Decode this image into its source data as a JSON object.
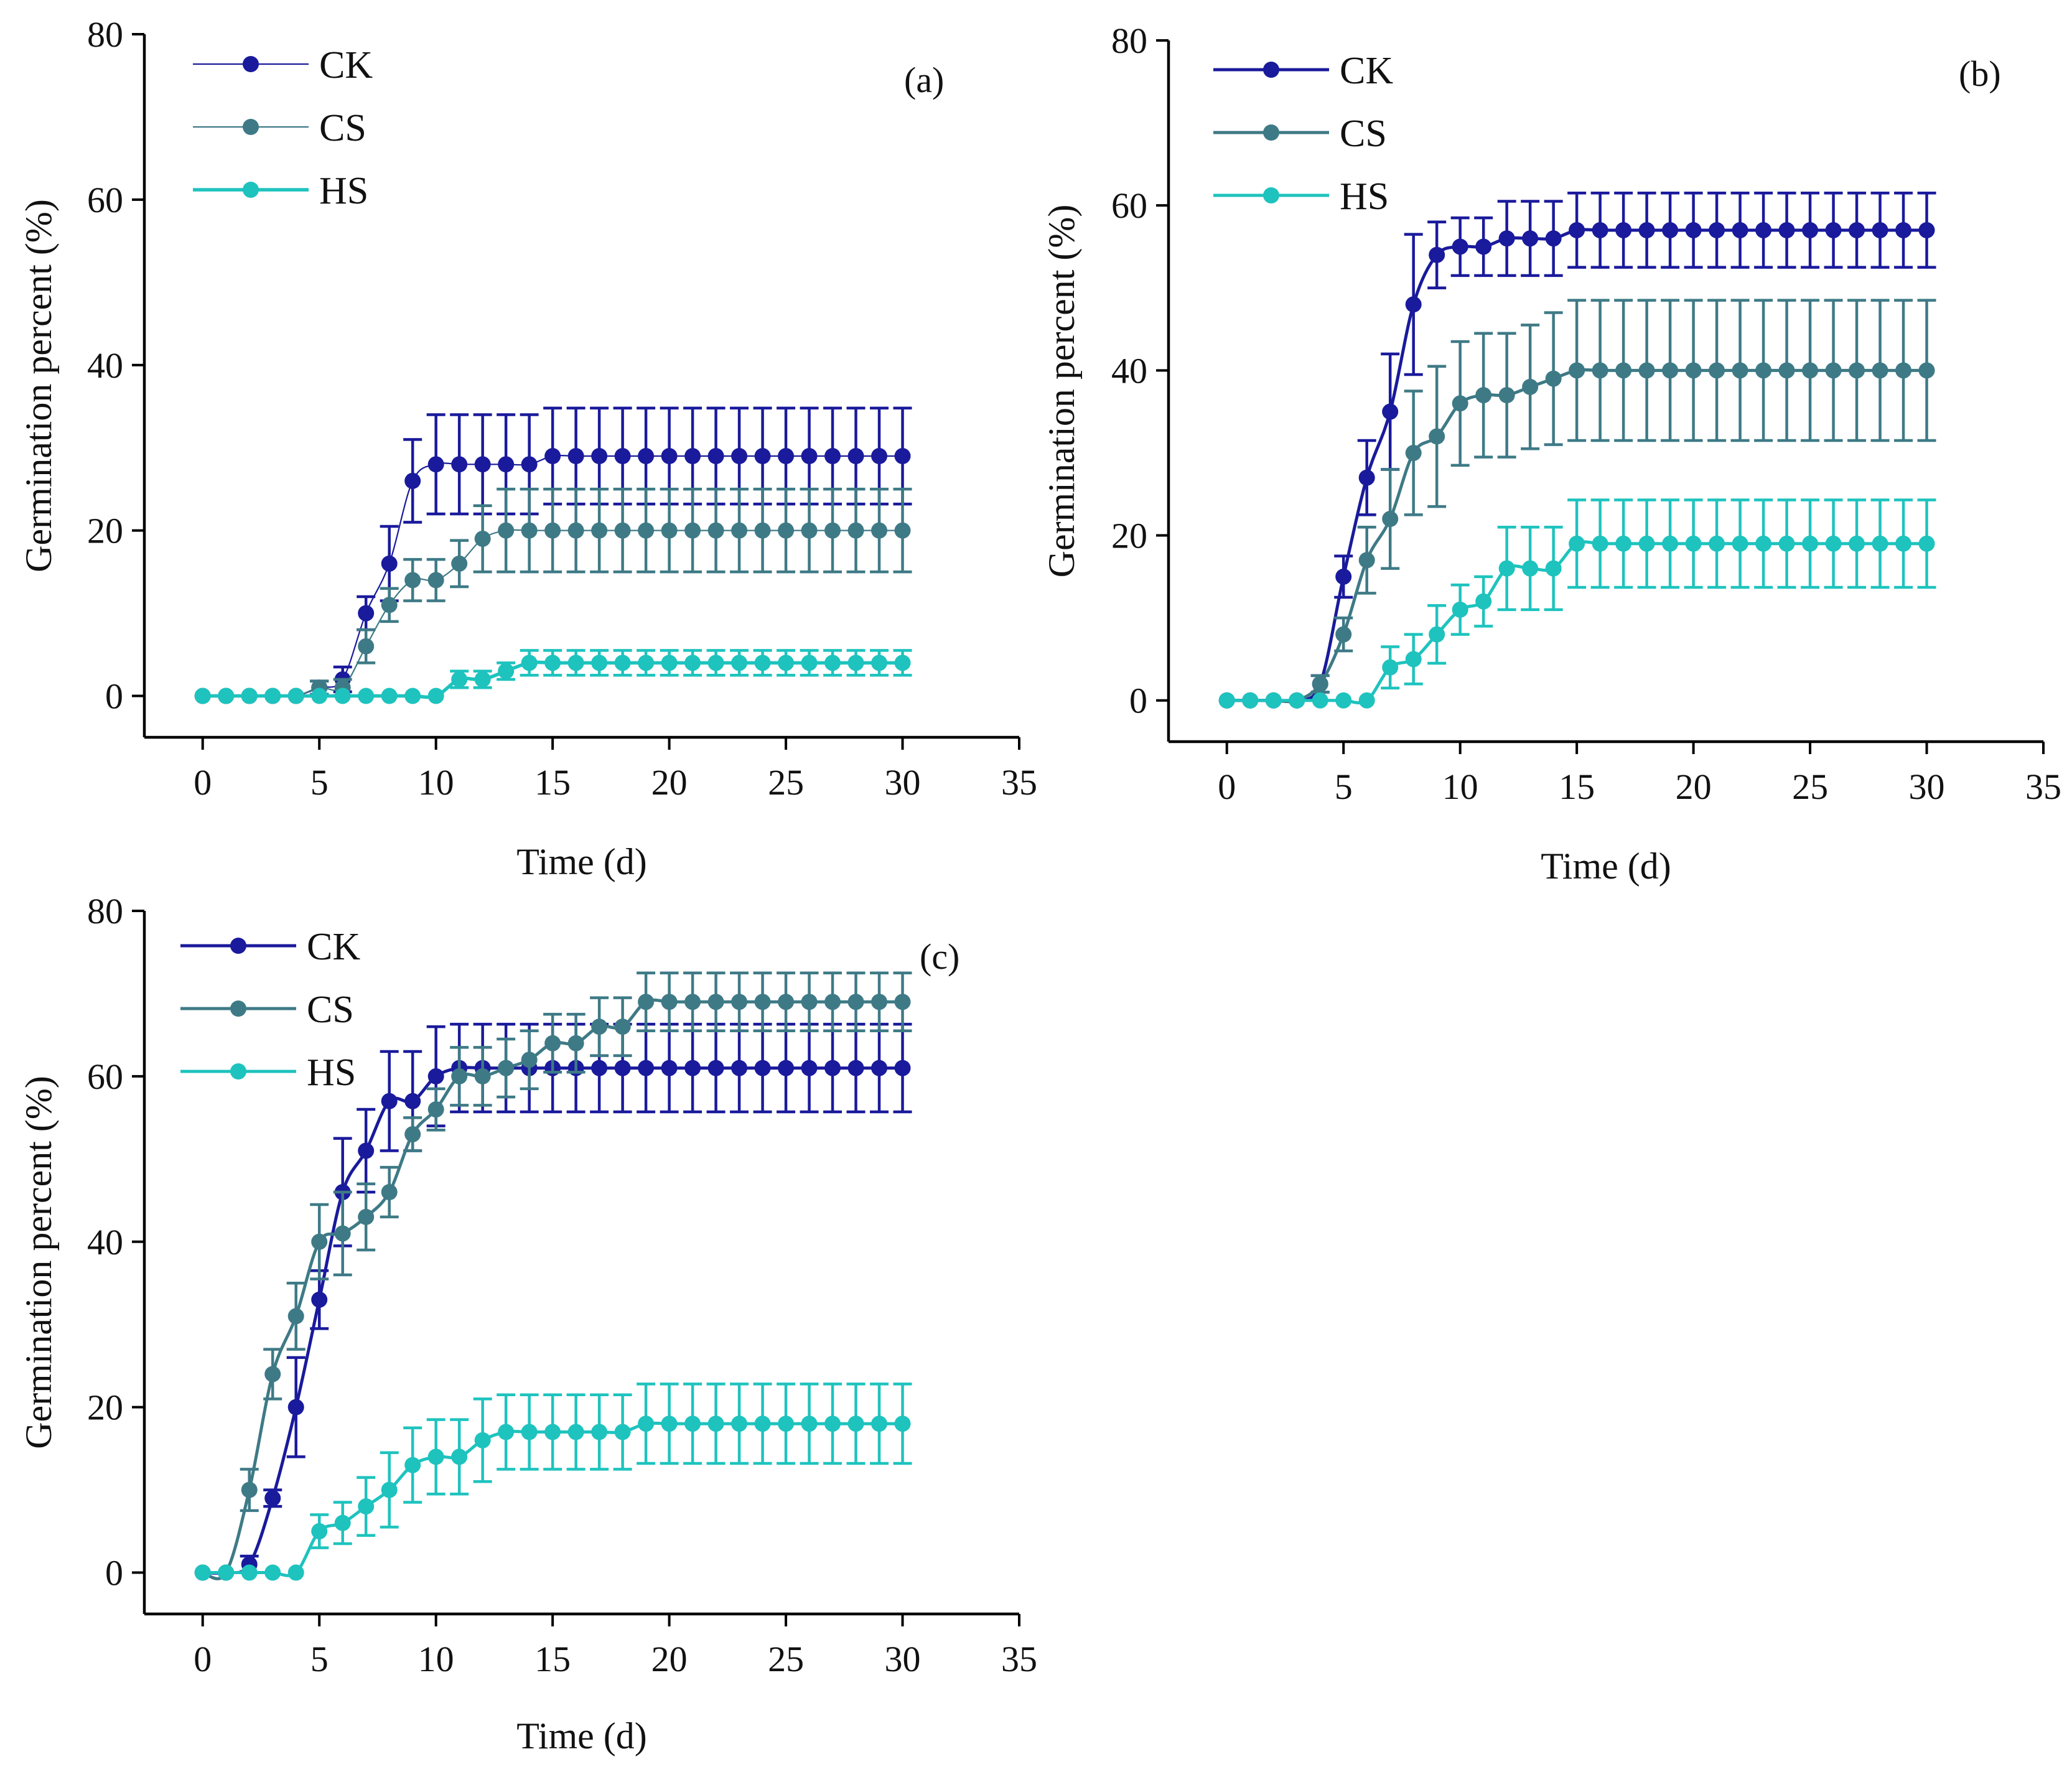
{
  "figure": {
    "title": ""
  },
  "chart_data": [
    {
      "type": "line",
      "panel_label": "(a)",
      "xlabel": "Time (d)",
      "ylabel": "Germination percent (%)",
      "xlim": [
        -2.5,
        35
      ],
      "ylim": [
        -5,
        80
      ],
      "xticks": [
        0,
        5,
        10,
        15,
        20,
        25,
        30,
        35
      ],
      "yticks": [
        0,
        20,
        40,
        60,
        80
      ],
      "xtick_labels": [
        "0",
        "5",
        "10",
        "15",
        "20",
        "25",
        "30",
        "35"
      ],
      "ytick_labels": [
        "0",
        "20",
        "40",
        "60",
        "80"
      ],
      "legend_position": "top-left",
      "x": [
        0,
        1,
        2,
        3,
        4,
        5,
        6,
        7,
        8,
        9,
        10,
        11,
        12,
        13,
        14,
        15,
        16,
        17,
        18,
        19,
        20,
        21,
        22,
        23,
        24,
        25,
        26,
        27,
        28,
        29,
        30
      ],
      "series": [
        {
          "name": "CK",
          "color": "#1a1a9c",
          "values": [
            0,
            0,
            0,
            0,
            0,
            1,
            2,
            10,
            16,
            26,
            28,
            28,
            28,
            28,
            28,
            29,
            29,
            29,
            29,
            29,
            29,
            29,
            29,
            29,
            29,
            29,
            29,
            29,
            29,
            29,
            29
          ],
          "errors": [
            0,
            0,
            0,
            0,
            0,
            0.8,
            1.5,
            2,
            4.5,
            5,
            6,
            6,
            6,
            6,
            6,
            5.8,
            5.8,
            5.8,
            5.8,
            5.8,
            5.8,
            5.8,
            5.8,
            5.8,
            5.8,
            5.8,
            5.8,
            5.8,
            5.8,
            5.8,
            5.8
          ]
        },
        {
          "name": "CS",
          "color": "#3e7a86",
          "values": [
            0,
            0,
            0,
            0,
            0,
            1,
            1,
            6,
            11,
            14,
            14,
            16,
            19,
            20,
            20,
            20,
            20,
            20,
            20,
            20,
            20,
            20,
            20,
            20,
            20,
            20,
            20,
            20,
            20,
            20,
            20
          ],
          "errors": [
            0,
            0,
            0,
            0,
            0,
            0.8,
            1,
            2,
            2,
            2.5,
            2.5,
            2.8,
            4,
            5,
            5,
            5,
            5,
            5,
            5,
            5,
            5,
            5,
            5,
            5,
            5,
            5,
            5,
            5,
            5,
            5,
            5
          ]
        },
        {
          "name": "HS",
          "color": "#1ec3be",
          "values": [
            0,
            0,
            0,
            0,
            0,
            0,
            0,
            0,
            0,
            0,
            0,
            2,
            2,
            3,
            4,
            4,
            4,
            4,
            4,
            4,
            4,
            4,
            4,
            4,
            4,
            4,
            4,
            4,
            4,
            4,
            4
          ],
          "errors": [
            0,
            0,
            0,
            0,
            0,
            0,
            0,
            0,
            0,
            0,
            0,
            1,
            1,
            1,
            1.5,
            1.5,
            1.5,
            1.5,
            1.5,
            1.5,
            1.5,
            1.5,
            1.5,
            1.5,
            1.5,
            1.5,
            1.5,
            1.5,
            1.5,
            1.5,
            1.5
          ]
        }
      ]
    },
    {
      "type": "line",
      "panel_label": "(b)",
      "xlabel": "Time (d)",
      "ylabel": "Germination percent (%)",
      "xlim": [
        -2.5,
        35
      ],
      "ylim": [
        -5,
        80
      ],
      "xticks": [
        0,
        5,
        10,
        15,
        20,
        25,
        30,
        35
      ],
      "yticks": [
        0,
        20,
        40,
        60,
        80
      ],
      "xtick_labels": [
        "0",
        "5",
        "10",
        "15",
        "20",
        "25",
        "30",
        "35"
      ],
      "ytick_labels": [
        "0",
        "20",
        "40",
        "60",
        "80"
      ],
      "legend_position": "top-left",
      "x": [
        0,
        1,
        2,
        3,
        4,
        5,
        6,
        7,
        8,
        9,
        10,
        11,
        12,
        13,
        14,
        15,
        16,
        17,
        18,
        19,
        20,
        21,
        22,
        23,
        24,
        25,
        26,
        27,
        28,
        29,
        30
      ],
      "series": [
        {
          "name": "CK",
          "color": "#1a1a9c",
          "values": [
            0,
            0,
            0,
            0,
            2,
            15,
            27,
            35,
            48,
            54,
            55,
            55,
            56,
            56,
            56,
            57,
            57,
            57,
            57,
            57,
            57,
            57,
            57,
            57,
            57,
            57,
            57,
            57,
            57,
            57,
            57
          ],
          "errors": [
            0,
            0,
            0,
            0,
            1,
            2.5,
            4.5,
            7,
            8.5,
            4,
            3.5,
            3.5,
            4.5,
            4.5,
            4.5,
            4.5,
            4.5,
            4.5,
            4.5,
            4.5,
            4.5,
            4.5,
            4.5,
            4.5,
            4.5,
            4.5,
            4.5,
            4.5,
            4.5,
            4.5,
            4.5
          ]
        },
        {
          "name": "CS",
          "color": "#3e7a86",
          "values": [
            0,
            0,
            0,
            0,
            2,
            8,
            17,
            22,
            30,
            32,
            36,
            37,
            37,
            38,
            39,
            40,
            40,
            40,
            40,
            40,
            40,
            40,
            40,
            40,
            40,
            40,
            40,
            40,
            40,
            40,
            40
          ],
          "errors": [
            0,
            0,
            0,
            0,
            1,
            2,
            4,
            6,
            7.5,
            8.5,
            7.5,
            7.5,
            7.5,
            7.5,
            8,
            8.5,
            8.5,
            8.5,
            8.5,
            8.5,
            8.5,
            8.5,
            8.5,
            8.5,
            8.5,
            8.5,
            8.5,
            8.5,
            8.5,
            8.5,
            8.5
          ]
        },
        {
          "name": "HS",
          "color": "#1ec3be",
          "values": [
            0,
            0,
            0,
            0,
            0,
            0,
            0,
            4,
            5,
            8,
            11,
            12,
            16,
            16,
            16,
            19,
            19,
            19,
            19,
            19,
            19,
            19,
            19,
            19,
            19,
            19,
            19,
            19,
            19,
            19,
            19
          ],
          "errors": [
            0,
            0,
            0,
            0,
            0,
            0,
            0,
            2.5,
            3,
            3.5,
            3,
            3,
            5,
            5,
            5,
            5.3,
            5.3,
            5.3,
            5.3,
            5.3,
            5.3,
            5.3,
            5.3,
            5.3,
            5.3,
            5.3,
            5.3,
            5.3,
            5.3,
            5.3,
            5.3
          ]
        }
      ]
    },
    {
      "type": "line",
      "panel_label": "(c)",
      "xlabel": "Time (d)",
      "ylabel": "Germination percent (%)",
      "xlim": [
        -2.5,
        35
      ],
      "ylim": [
        -5,
        80
      ],
      "xticks": [
        0,
        5,
        10,
        15,
        20,
        25,
        30,
        35
      ],
      "yticks": [
        0,
        20,
        40,
        60,
        80
      ],
      "xtick_labels": [
        "0",
        "5",
        "10",
        "15",
        "20",
        "25",
        "30",
        "35"
      ],
      "ytick_labels": [
        "0",
        "20",
        "40",
        "60",
        "80"
      ],
      "legend_position": "top-left",
      "x": [
        0,
        1,
        2,
        3,
        4,
        5,
        6,
        7,
        8,
        9,
        10,
        11,
        12,
        13,
        14,
        15,
        16,
        17,
        18,
        19,
        20,
        21,
        22,
        23,
        24,
        25,
        26,
        27,
        28,
        29,
        30
      ],
      "series": [
        {
          "name": "CK",
          "color": "#1a1a9c",
          "values": [
            0,
            0,
            1,
            9,
            20,
            33,
            46,
            51,
            57,
            57,
            60,
            61,
            61,
            61,
            61,
            61,
            61,
            61,
            61,
            61,
            61,
            61,
            61,
            61,
            61,
            61,
            61,
            61,
            61,
            61,
            61
          ],
          "errors": [
            0,
            0,
            1,
            1,
            6,
            3.5,
            6.5,
            5,
            6,
            6,
            6,
            5.3,
            5.3,
            5.3,
            5.3,
            5.3,
            5.3,
            5.3,
            5.3,
            5.3,
            5.3,
            5.3,
            5.3,
            5.3,
            5.3,
            5.3,
            5.3,
            5.3,
            5.3,
            5.3,
            5.3
          ]
        },
        {
          "name": "CS",
          "color": "#3e7a86",
          "values": [
            0,
            0,
            10,
            24,
            31,
            40,
            41,
            43,
            46,
            53,
            56,
            60,
            60,
            61,
            62,
            64,
            64,
            66,
            66,
            69,
            69,
            69,
            69,
            69,
            69,
            69,
            69,
            69,
            69,
            69,
            69
          ],
          "errors": [
            0,
            0,
            2.5,
            3,
            4,
            4.5,
            5,
            4,
            3,
            2,
            2.5,
            3.5,
            3.5,
            3.5,
            3.5,
            3.5,
            3.5,
            3.5,
            3.5,
            3.5,
            3.5,
            3.5,
            3.5,
            3.5,
            3.5,
            3.5,
            3.5,
            3.5,
            3.5,
            3.5,
            3.5
          ]
        },
        {
          "name": "HS",
          "color": "#1ec3be",
          "values": [
            0,
            0,
            0,
            0,
            0,
            5,
            6,
            8,
            10,
            13,
            14,
            14,
            16,
            17,
            17,
            17,
            17,
            17,
            17,
            18,
            18,
            18,
            18,
            18,
            18,
            18,
            18,
            18,
            18,
            18,
            18
          ],
          "errors": [
            0,
            0,
            0,
            0,
            0,
            2,
            2.5,
            3.5,
            4.5,
            4.5,
            4.5,
            4.5,
            5,
            4.5,
            4.5,
            4.5,
            4.5,
            4.5,
            4.5,
            4.8,
            4.8,
            4.8,
            4.8,
            4.8,
            4.8,
            4.8,
            4.8,
            4.8,
            4.8,
            4.8,
            4.8
          ]
        }
      ]
    }
  ]
}
